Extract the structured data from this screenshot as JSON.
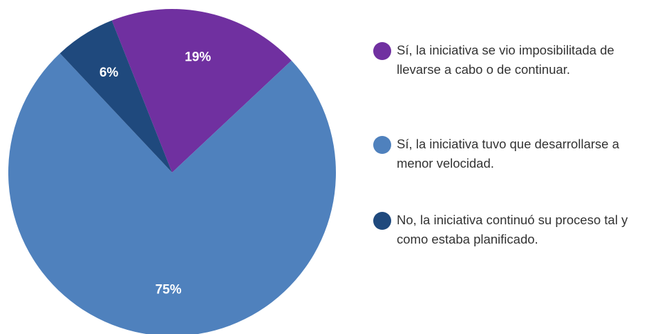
{
  "chart_data": {
    "type": "pie",
    "categories": [
      "Sí, la iniciativa se vio imposibilitada de llevarse a cabo o de continuar.",
      "Sí, la iniciativa tuvo que desarrollarse a menor velocidad.",
      "No, la iniciativa continuó su proceso tal y como estaba planificado."
    ],
    "values": [
      19,
      75,
      6
    ],
    "value_labels": [
      "19%",
      "75%",
      "6%"
    ],
    "colors": [
      "#7030a0",
      "#4f81bd",
      "#1f497d"
    ],
    "legend": "right"
  }
}
